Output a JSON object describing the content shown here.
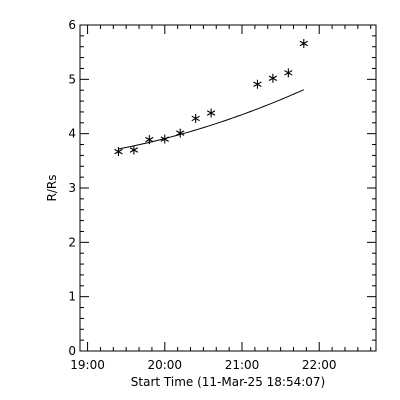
{
  "chart_data": {
    "type": "scatter",
    "title": "",
    "xlabel": "Start Time (11-Mar-25 18:54:07)",
    "ylabel": "R/Rs",
    "xlim": [
      "18:54:07",
      "22:44:07"
    ],
    "ylim": [
      0,
      6
    ],
    "x_ticks": [
      "19:00",
      "20:00",
      "21:00",
      "22:00"
    ],
    "y_ticks": [
      "0",
      "1",
      "2",
      "3",
      "4",
      "5",
      "6"
    ],
    "grid": false,
    "legend": "none",
    "marker": "asterisk",
    "series": [
      {
        "x": [
          "19:24",
          "19:36",
          "19:48",
          "20:00",
          "20:12",
          "20:24",
          "20:36",
          "21:12",
          "21:24",
          "21:36",
          "21:48"
        ],
        "y": [
          3.67,
          3.7,
          3.89,
          3.9,
          4.01,
          4.28,
          4.38,
          4.91,
          5.02,
          5.12,
          5.66
        ]
      }
    ],
    "fit_curve": {
      "x_range": [
        "19:24",
        "21:48"
      ],
      "polynomial_in_hours_from_start": [
        3.6,
        0.2,
        0.075
      ]
    }
  }
}
